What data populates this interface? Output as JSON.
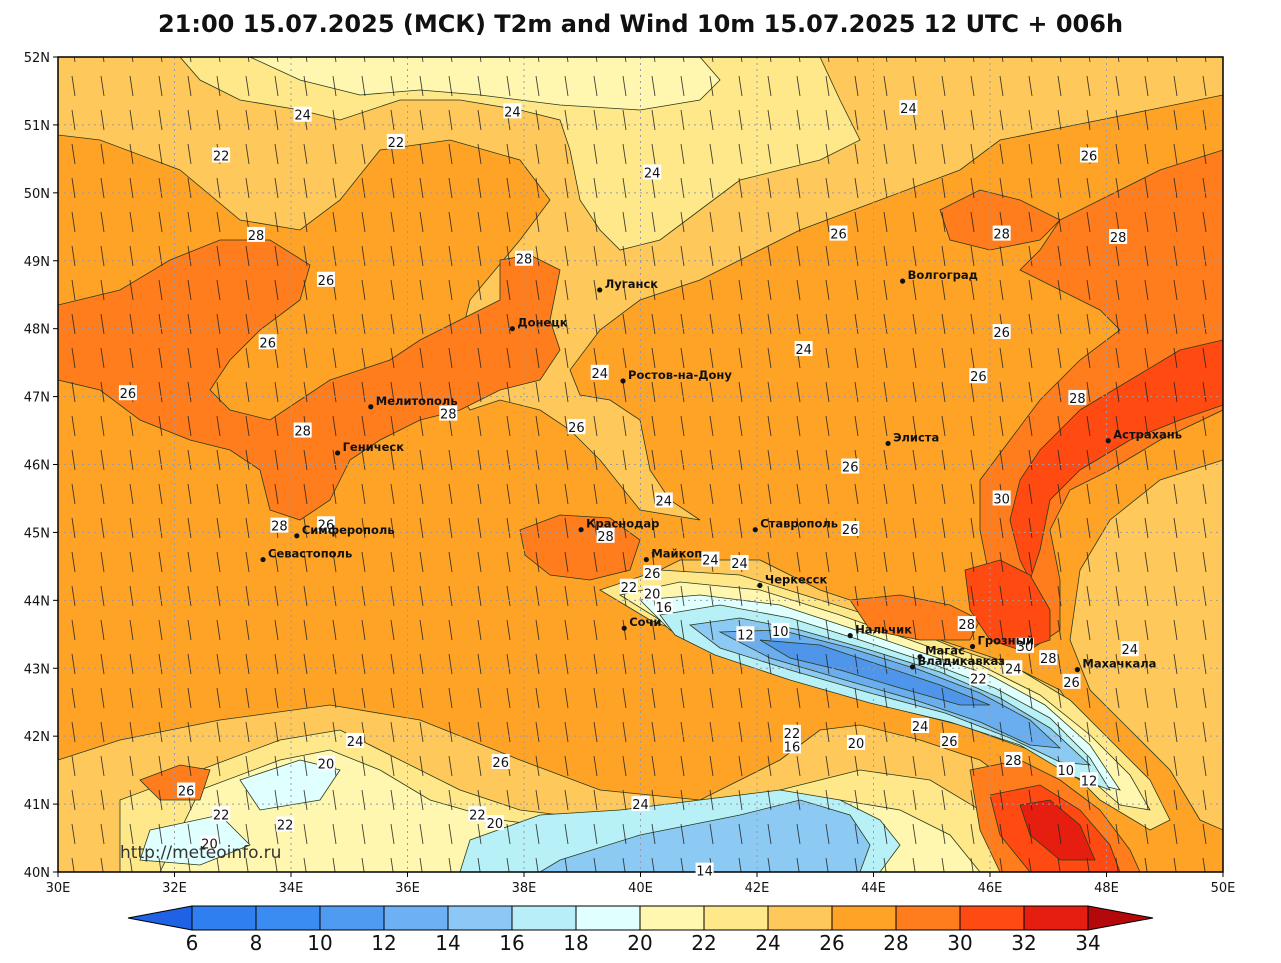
{
  "title": "21:00 15.07.2025 (МСК) T2m and Wind 10m 15.07.2025 12 UTC + 006h",
  "watermark": "http://meteoinfo.ru",
  "colors": {
    "t20": "#fff7b0",
    "t22": "#ffe88a",
    "t24": "#ffc85a",
    "t26": "#ffa326",
    "t28": "#ff7d1c",
    "t30": "#ff4a12",
    "t32": "#e51e10",
    "coldLight": "#e0ffff",
    "cold16": "#b7f0f7",
    "cold14": "#8ccaf4",
    "cold12": "#6aaef0",
    "cold10": "#4f95ea"
  },
  "map": {
    "lon_ticks": [
      "30E",
      "32E",
      "34E",
      "36E",
      "38E",
      "40E",
      "42E",
      "44E",
      "46E",
      "48E",
      "50E"
    ],
    "lat_ticks": [
      "52N",
      "51N",
      "50N",
      "49N",
      "48N",
      "47N",
      "46N",
      "45N",
      "44N",
      "43N",
      "42N",
      "41N",
      "40N"
    ],
    "lon_range": [
      30,
      50
    ],
    "lat_range": [
      40,
      52
    ],
    "cities": [
      {
        "name": "Луганск",
        "lon": 39.3,
        "lat": 48.57
      },
      {
        "name": "Донецк",
        "lon": 37.8,
        "lat": 48.0
      },
      {
        "name": "Волгоград",
        "lon": 44.5,
        "lat": 48.7
      },
      {
        "name": "Ростов-на-Дону",
        "lon": 39.7,
        "lat": 47.23
      },
      {
        "name": "Мелитополь",
        "lon": 35.37,
        "lat": 46.85
      },
      {
        "name": "Геническ",
        "lon": 34.8,
        "lat": 46.17
      },
      {
        "name": "Элиста",
        "lon": 44.25,
        "lat": 46.31
      },
      {
        "name": "Астрахань",
        "lon": 48.03,
        "lat": 46.35
      },
      {
        "name": "Симферополь",
        "lon": 34.1,
        "lat": 44.95
      },
      {
        "name": "Севастополь",
        "lon": 33.52,
        "lat": 44.6
      },
      {
        "name": "Краснодар",
        "lon": 38.98,
        "lat": 45.04
      },
      {
        "name": "Ставрополь",
        "lon": 41.97,
        "lat": 45.04
      },
      {
        "name": "Майкоп",
        "lon": 40.1,
        "lat": 44.6
      },
      {
        "name": "Черкесск",
        "lon": 42.05,
        "lat": 44.22
      },
      {
        "name": "Сочи",
        "lon": 39.72,
        "lat": 43.59
      },
      {
        "name": "Нальчик",
        "lon": 43.6,
        "lat": 43.48
      },
      {
        "name": "Магас",
        "lon": 44.8,
        "lat": 43.17
      },
      {
        "name": "Грозный",
        "lon": 45.7,
        "lat": 43.32
      },
      {
        "name": "Владикавказ",
        "lon": 44.67,
        "lat": 43.02
      },
      {
        "name": "Махачкала",
        "lon": 47.5,
        "lat": 42.98
      }
    ],
    "contour_labels": [
      {
        "text": "24",
        "lon": 34.2,
        "lat": 51.15
      },
      {
        "text": "24",
        "lon": 37.8,
        "lat": 51.2
      },
      {
        "text": "24",
        "lon": 44.6,
        "lat": 51.25
      },
      {
        "text": "22",
        "lon": 32.8,
        "lat": 50.55
      },
      {
        "text": "22",
        "lon": 35.8,
        "lat": 50.75
      },
      {
        "text": "26",
        "lon": 47.7,
        "lat": 50.55
      },
      {
        "text": "24",
        "lon": 40.2,
        "lat": 50.3
      },
      {
        "text": "28",
        "lon": 33.4,
        "lat": 49.38
      },
      {
        "text": "26",
        "lon": 43.4,
        "lat": 49.4
      },
      {
        "text": "28",
        "lon": 46.2,
        "lat": 49.4
      },
      {
        "text": "28",
        "lon": 48.2,
        "lat": 49.35
      },
      {
        "text": "28",
        "lon": 38.0,
        "lat": 49.03
      },
      {
        "text": "26",
        "lon": 34.6,
        "lat": 48.72
      },
      {
        "text": "26",
        "lon": 33.6,
        "lat": 47.8
      },
      {
        "text": "26",
        "lon": 46.2,
        "lat": 47.95
      },
      {
        "text": "24",
        "lon": 42.8,
        "lat": 47.7
      },
      {
        "text": "24",
        "lon": 39.3,
        "lat": 47.35
      },
      {
        "text": "26",
        "lon": 45.8,
        "lat": 47.3
      },
      {
        "text": "26",
        "lon": 31.2,
        "lat": 47.05
      },
      {
        "text": "28",
        "lon": 47.5,
        "lat": 46.98
      },
      {
        "text": "28",
        "lon": 36.7,
        "lat": 46.75
      },
      {
        "text": "26",
        "lon": 38.9,
        "lat": 46.55
      },
      {
        "text": "28",
        "lon": 34.2,
        "lat": 46.5
      },
      {
        "text": "26",
        "lon": 43.6,
        "lat": 45.97
      },
      {
        "text": "30",
        "lon": 46.2,
        "lat": 45.5
      },
      {
        "text": "24",
        "lon": 40.4,
        "lat": 45.47
      },
      {
        "text": "26",
        "lon": 43.6,
        "lat": 45.05
      },
      {
        "text": "28",
        "lon": 33.8,
        "lat": 45.1
      },
      {
        "text": "26",
        "lon": 34.6,
        "lat": 45.12
      },
      {
        "text": "28",
        "lon": 39.4,
        "lat": 44.95
      },
      {
        "text": "24",
        "lon": 41.2,
        "lat": 44.6
      },
      {
        "text": "24",
        "lon": 41.7,
        "lat": 44.55
      },
      {
        "text": "26",
        "lon": 40.2,
        "lat": 44.4
      },
      {
        "text": "22",
        "lon": 39.8,
        "lat": 44.2
      },
      {
        "text": "20",
        "lon": 40.2,
        "lat": 44.1
      },
      {
        "text": "16",
        "lon": 40.4,
        "lat": 43.9
      },
      {
        "text": "28",
        "lon": 45.6,
        "lat": 43.65
      },
      {
        "text": "12",
        "lon": 41.8,
        "lat": 43.5
      },
      {
        "text": "10",
        "lon": 42.4,
        "lat": 43.55
      },
      {
        "text": "30",
        "lon": 46.6,
        "lat": 43.33
      },
      {
        "text": "24",
        "lon": 48.4,
        "lat": 43.28
      },
      {
        "text": "28",
        "lon": 47.0,
        "lat": 43.15
      },
      {
        "text": "24",
        "lon": 46.4,
        "lat": 43.0
      },
      {
        "text": "22",
        "lon": 45.8,
        "lat": 42.85
      },
      {
        "text": "26",
        "lon": 47.4,
        "lat": 42.8
      },
      {
        "text": "24",
        "lon": 44.8,
        "lat": 42.15
      },
      {
        "text": "22",
        "lon": 42.6,
        "lat": 42.05
      },
      {
        "text": "16",
        "lon": 42.6,
        "lat": 41.85
      },
      {
        "text": "20",
        "lon": 43.7,
        "lat": 41.9
      },
      {
        "text": "26",
        "lon": 45.3,
        "lat": 41.93
      },
      {
        "text": "24",
        "lon": 35.1,
        "lat": 41.93
      },
      {
        "text": "20",
        "lon": 34.6,
        "lat": 41.6
      },
      {
        "text": "26",
        "lon": 37.6,
        "lat": 41.62
      },
      {
        "text": "28",
        "lon": 46.4,
        "lat": 41.65
      },
      {
        "text": "10",
        "lon": 47.3,
        "lat": 41.5
      },
      {
        "text": "12",
        "lon": 47.7,
        "lat": 41.35
      },
      {
        "text": "26",
        "lon": 32.2,
        "lat": 41.2
      },
      {
        "text": "24",
        "lon": 40.0,
        "lat": 41.0
      },
      {
        "text": "22",
        "lon": 32.8,
        "lat": 40.85
      },
      {
        "text": "22",
        "lon": 37.2,
        "lat": 40.85
      },
      {
        "text": "22",
        "lon": 33.9,
        "lat": 40.7
      },
      {
        "text": "20",
        "lon": 37.5,
        "lat": 40.72
      },
      {
        "text": "20",
        "lon": 32.6,
        "lat": 40.42
      },
      {
        "text": "14",
        "lon": 41.1,
        "lat": 40.02
      }
    ]
  },
  "colorbar": {
    "labels": [
      "6",
      "8",
      "10",
      "12",
      "14",
      "16",
      "18",
      "20",
      "22",
      "24",
      "26",
      "28",
      "30",
      "32",
      "34"
    ],
    "colors": [
      "#2f7ff0",
      "#3a8bf2",
      "#4f9bf2",
      "#6db0f4",
      "#8cc7f6",
      "#b7eef7",
      "#e0ffff",
      "#fff7b0",
      "#ffe88a",
      "#ffc85a",
      "#ffa326",
      "#ff7d1c",
      "#ff4a12",
      "#e51e10",
      "#c8100c"
    ],
    "min_color": "#2062e6",
    "max_color": "#b5080a"
  }
}
